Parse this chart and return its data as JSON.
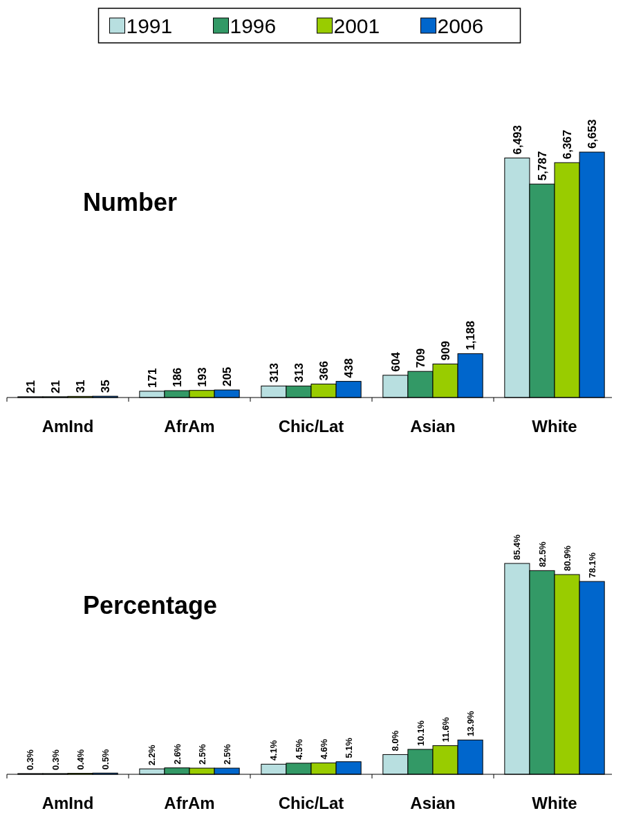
{
  "chart_data": [
    {
      "type": "bar",
      "title": "Number",
      "categories": [
        "AmInd",
        "AfrAm",
        "Chic/Lat",
        "Asian",
        "White"
      ],
      "legend": "top",
      "series": [
        {
          "name": "1991",
          "color": "#b8dfe0",
          "values": [
            21,
            171,
            313,
            604,
            6493
          ],
          "value_labels": [
            "21",
            "171",
            "313",
            "604",
            "6,493"
          ]
        },
        {
          "name": "1996",
          "color": "#339966",
          "values": [
            21,
            186,
            313,
            709,
            5787
          ],
          "value_labels": [
            "21",
            "186",
            "313",
            "709",
            "5,787"
          ]
        },
        {
          "name": "2001",
          "color": "#99cc00",
          "values": [
            31,
            193,
            366,
            909,
            6367
          ],
          "value_labels": [
            "31",
            "193",
            "366",
            "909",
            "6,367"
          ]
        },
        {
          "name": "2006",
          "color": "#0066cc",
          "values": [
            35,
            205,
            438,
            1188,
            6653
          ],
          "value_labels": [
            "35",
            "205",
            "438",
            "1,188",
            "6,653"
          ]
        }
      ]
    },
    {
      "type": "bar",
      "title": "Percentage",
      "categories": [
        "AmInd",
        "AfrAm",
        "Chic/Lat",
        "Asian",
        "White"
      ],
      "legend": false,
      "series": [
        {
          "color": "#b8dfe0",
          "values": [
            0.3,
            2.2,
            4.1,
            8.0,
            85.4
          ],
          "value_labels": [
            "0.3%",
            "2.2%",
            "4.1%",
            "8.0%",
            "85.4%"
          ]
        },
        {
          "color": "#339966",
          "values": [
            0.3,
            2.6,
            4.5,
            10.1,
            82.5
          ],
          "value_labels": [
            "0.3%",
            "2.6%",
            "4.5%",
            "10.1%",
            "82.5%"
          ]
        },
        {
          "color": "#99cc00",
          "values": [
            0.4,
            2.5,
            4.6,
            11.6,
            80.9
          ],
          "value_labels": [
            "0.4%",
            "2.5%",
            "4.6%",
            "11.6%",
            "80.9%"
          ]
        },
        {
          "color": "#0066cc",
          "values": [
            0.5,
            2.5,
            5.1,
            13.9,
            78.1
          ],
          "value_labels": [
            "0.5%",
            "2.5%",
            "5.1%",
            "13.9%",
            "78.1%"
          ]
        }
      ]
    }
  ]
}
